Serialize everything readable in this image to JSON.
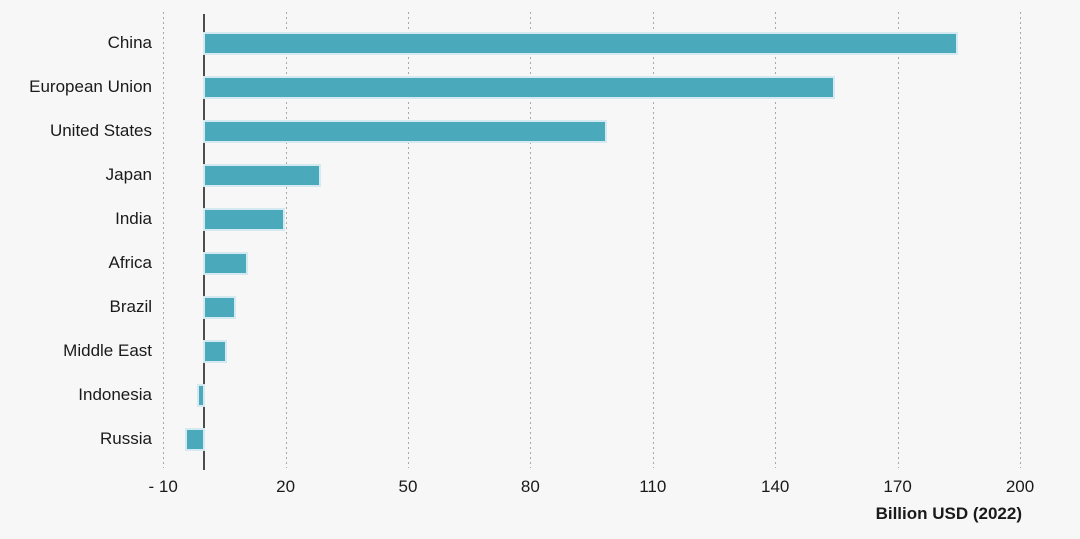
{
  "background_color": "#F7F7F8",
  "chart_data": {
    "type": "bar",
    "orientation": "horizontal",
    "title": "",
    "xlabel": "Billion USD (2022)",
    "ylabel": "",
    "categories": [
      "China",
      "European Union",
      "United States",
      "Japan",
      "India",
      "Africa",
      "Brazil",
      "Middle East",
      "Indonesia",
      "Russia"
    ],
    "values": [
      184,
      154,
      98,
      28,
      19,
      10,
      7,
      5,
      -1,
      -4
    ],
    "xticks": [
      -10,
      20,
      50,
      80,
      110,
      140,
      170,
      200
    ],
    "xtick_labels": [
      "- 10",
      "20",
      "50",
      "80",
      "110",
      "140",
      "170",
      "200"
    ],
    "xlim": [
      -13,
      213
    ],
    "grid": "vertical-dotted",
    "legend": "none",
    "colors": {
      "bar_fill": "#4AA9BB",
      "bar_edge": "#D5EAF0",
      "gridline": "#A8A8A8",
      "zero_axis": "#4D4D4D",
      "text": "#1A1A1A",
      "background": "#F7F7F8"
    }
  }
}
